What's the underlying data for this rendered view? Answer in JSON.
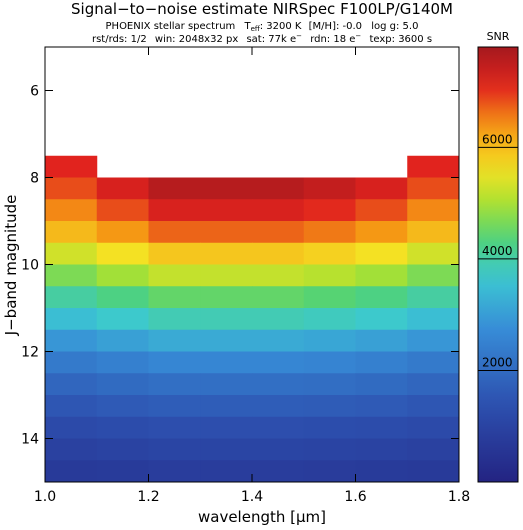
{
  "chart_data": {
    "type": "heatmap",
    "title": "Signal−to−noise estimate NIRSpec F100LP/G140M",
    "subtitle_1": [
      "PHOENIX stellar spectrum",
      "T",
      "eff",
      ": 3200 K",
      "[M/H]: -0.0",
      "log g: 5.0"
    ],
    "subtitle_2": [
      "rst/rds: 1/2",
      "win: 2048x32 px",
      "sat: 77k e",
      "−",
      "rdn: 18 e",
      "−",
      "texp: 3600 s"
    ],
    "xlabel": "wavelength [μm]",
    "ylabel": "J−band magnitude",
    "xlim": [
      1.0,
      1.8
    ],
    "xticks": [
      {
        "value": 1,
        "label": "1.0"
      },
      1.2,
      1.4,
      1.6,
      1.8
    ],
    "ylim": [
      5,
      15
    ],
    "y_inverted": true,
    "yticks": [
      6,
      8,
      10,
      12,
      14
    ],
    "x_edges": [
      1.0,
      1.1,
      1.2,
      1.3,
      1.4,
      1.5,
      1.6,
      1.7,
      1.8
    ],
    "y_edges": [
      7.5,
      8,
      8.5,
      9,
      9.5,
      10,
      10.5,
      11,
      11.5,
      12,
      12.5,
      13,
      13.5,
      14,
      14.5,
      15
    ],
    "values": [
      [
        7100,
        null,
        null,
        null,
        null,
        null,
        null,
        7100
      ],
      [
        6840,
        7220,
        7600,
        7600,
        7600,
        7450,
        7220,
        6840
      ],
      [
        6480,
        6840,
        7200,
        7200,
        7200,
        7060,
        6840,
        6480
      ],
      [
        6030,
        6370,
        6700,
        6700,
        6700,
        6570,
        6370,
        6030
      ],
      [
        5310,
        5610,
        5900,
        5900,
        5900,
        5780,
        5610,
        5310
      ],
      [
        4680,
        4940,
        5200,
        5200,
        5200,
        5100,
        4940,
        4680
      ],
      [
        4050,
        4280,
        4500,
        4500,
        4500,
        4410,
        4280,
        4050
      ],
      [
        3510,
        3710,
        3900,
        3900,
        3900,
        3820,
        3710,
        3510
      ],
      [
        2880,
        3040,
        3200,
        3200,
        3200,
        3140,
        3040,
        2880
      ],
      [
        2340,
        2470,
        2600,
        2600,
        2600,
        2550,
        2470,
        2340
      ],
      [
        1890,
        2000,
        2100,
        2100,
        2100,
        2060,
        2000,
        1890
      ],
      [
        1530,
        1620,
        1700,
        1700,
        1700,
        1670,
        1620,
        1530
      ],
      [
        1220,
        1280,
        1350,
        1350,
        1350,
        1320,
        1280,
        1220
      ],
      [
        950,
        1000,
        1050,
        1050,
        1050,
        1030,
        1000,
        950
      ],
      [
        720,
        760,
        800,
        800,
        800,
        780,
        760,
        720
      ]
    ],
    "colormap": "rainbow",
    "colorbar_label": "SNR",
    "clim": [
      0,
      7800
    ],
    "cticks": [
      2000,
      4000,
      6000
    ]
  }
}
